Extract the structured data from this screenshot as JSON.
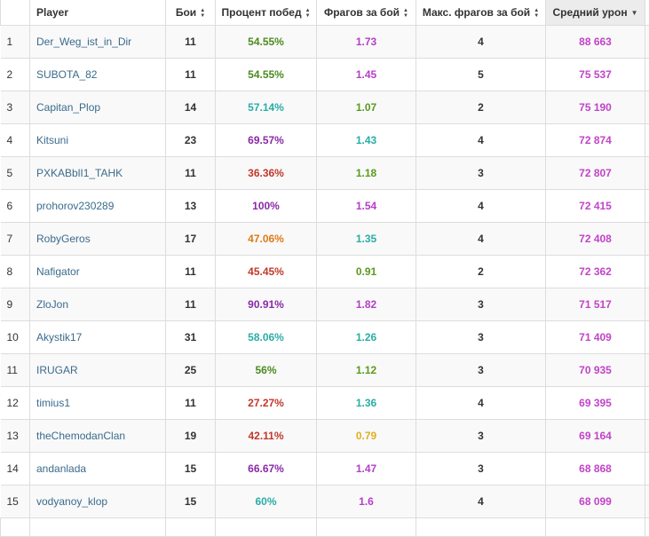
{
  "columns": {
    "index": "",
    "player": "Player",
    "battles": "Бои",
    "winrate": "Процент побед",
    "frags": "Фрагов за бой",
    "max_frags": "Макс. фрагов за бой",
    "avg_damage": "Средний урон"
  },
  "sort": {
    "column": "avg_damage",
    "direction": "desc"
  },
  "icons": {
    "sort_both": "sort-both-icon",
    "sort_desc": "sort-desc-icon"
  },
  "colors": {
    "player_link": "#3a6b8c",
    "winrate_green": "#4c8a1e",
    "winrate_teal": "#2aada6",
    "winrate_purple": "#8a2aa6",
    "winrate_red": "#c0392b",
    "winrate_orange": "#e07a18",
    "frags_yellow": "#e0b020",
    "frags_green": "#5a9a1e",
    "frags_teal": "#2aada6",
    "frags_purple": "#b43ec8",
    "damage_magenta": "#c144c8"
  },
  "rows": [
    {
      "index": "1",
      "player": "Der_Weg_ist_in_Dir",
      "battles": "11",
      "winrate": "54.55%",
      "winrate_color": "#4c8a1e",
      "frags": "1.73",
      "frags_color": "#b43ec8",
      "max_frags": "4",
      "avg_damage": "88 663"
    },
    {
      "index": "2",
      "player": "SUBOTA_82",
      "battles": "11",
      "winrate": "54.55%",
      "winrate_color": "#4c8a1e",
      "frags": "1.45",
      "frags_color": "#b43ec8",
      "max_frags": "5",
      "avg_damage": "75 537"
    },
    {
      "index": "3",
      "player": "Capitan_Plop",
      "battles": "14",
      "winrate": "57.14%",
      "winrate_color": "#2aada6",
      "frags": "1.07",
      "frags_color": "#5a9a1e",
      "max_frags": "2",
      "avg_damage": "75 190"
    },
    {
      "index": "4",
      "player": "Kitsuni",
      "battles": "23",
      "winrate": "69.57%",
      "winrate_color": "#8a2aa6",
      "frags": "1.43",
      "frags_color": "#2aada6",
      "max_frags": "4",
      "avg_damage": "72 874"
    },
    {
      "index": "5",
      "player": "PXKABblI1_TAHK",
      "battles": "11",
      "winrate": "36.36%",
      "winrate_color": "#c0392b",
      "frags": "1.18",
      "frags_color": "#5a9a1e",
      "max_frags": "3",
      "avg_damage": "72 807"
    },
    {
      "index": "6",
      "player": "prohorov230289",
      "battles": "13",
      "winrate": "100%",
      "winrate_color": "#8a2aa6",
      "frags": "1.54",
      "frags_color": "#b43ec8",
      "max_frags": "4",
      "avg_damage": "72 415"
    },
    {
      "index": "7",
      "player": "RobyGeros",
      "battles": "17",
      "winrate": "47.06%",
      "winrate_color": "#e07a18",
      "frags": "1.35",
      "frags_color": "#2aada6",
      "max_frags": "4",
      "avg_damage": "72 408"
    },
    {
      "index": "8",
      "player": "Nafigator",
      "battles": "11",
      "winrate": "45.45%",
      "winrate_color": "#c0392b",
      "frags": "0.91",
      "frags_color": "#5a9a1e",
      "max_frags": "2",
      "avg_damage": "72 362"
    },
    {
      "index": "9",
      "player": "ZloJon",
      "battles": "11",
      "winrate": "90.91%",
      "winrate_color": "#8a2aa6",
      "frags": "1.82",
      "frags_color": "#b43ec8",
      "max_frags": "3",
      "avg_damage": "71 517"
    },
    {
      "index": "10",
      "player": "Akystik17",
      "battles": "31",
      "winrate": "58.06%",
      "winrate_color": "#2aada6",
      "frags": "1.26",
      "frags_color": "#2aada6",
      "max_frags": "3",
      "avg_damage": "71 409"
    },
    {
      "index": "11",
      "player": "IRUGAR",
      "battles": "25",
      "winrate": "56%",
      "winrate_color": "#4c8a1e",
      "frags": "1.12",
      "frags_color": "#5a9a1e",
      "max_frags": "3",
      "avg_damage": "70 935"
    },
    {
      "index": "12",
      "player": "timius1",
      "battles": "11",
      "winrate": "27.27%",
      "winrate_color": "#c0392b",
      "frags": "1.36",
      "frags_color": "#2aada6",
      "max_frags": "4",
      "avg_damage": "69 395"
    },
    {
      "index": "13",
      "player": "theChemodanClan",
      "battles": "19",
      "winrate": "42.11%",
      "winrate_color": "#c0392b",
      "frags": "0.79",
      "frags_color": "#e0b020",
      "max_frags": "3",
      "avg_damage": "69 164"
    },
    {
      "index": "14",
      "player": "andanlada",
      "battles": "15",
      "winrate": "66.67%",
      "winrate_color": "#8a2aa6",
      "frags": "1.47",
      "frags_color": "#b43ec8",
      "max_frags": "3",
      "avg_damage": "68 868"
    },
    {
      "index": "15",
      "player": "vodyanoy_klop",
      "battles": "15",
      "winrate": "60%",
      "winrate_color": "#2aada6",
      "frags": "1.6",
      "frags_color": "#b43ec8",
      "max_frags": "4",
      "avg_damage": "68 099"
    }
  ]
}
